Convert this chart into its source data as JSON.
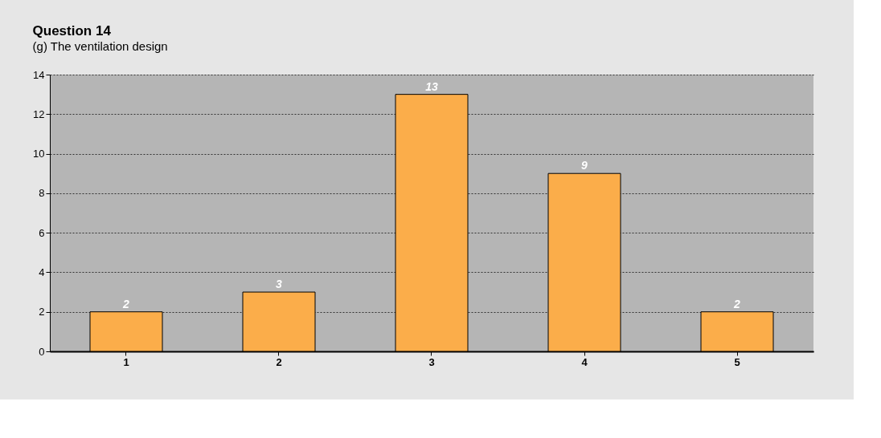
{
  "chart_data": {
    "type": "bar",
    "title": "Question 14",
    "subtitle": "(g) The ventilation design",
    "categories": [
      "1",
      "2",
      "3",
      "4",
      "5"
    ],
    "values": [
      2,
      3,
      13,
      9,
      2
    ],
    "color": "#fbad4a",
    "ylim": [
      0,
      14
    ],
    "yticks": [
      0,
      2,
      4,
      6,
      8,
      10,
      12,
      14
    ],
    "grid": "y",
    "data_labels": true
  }
}
